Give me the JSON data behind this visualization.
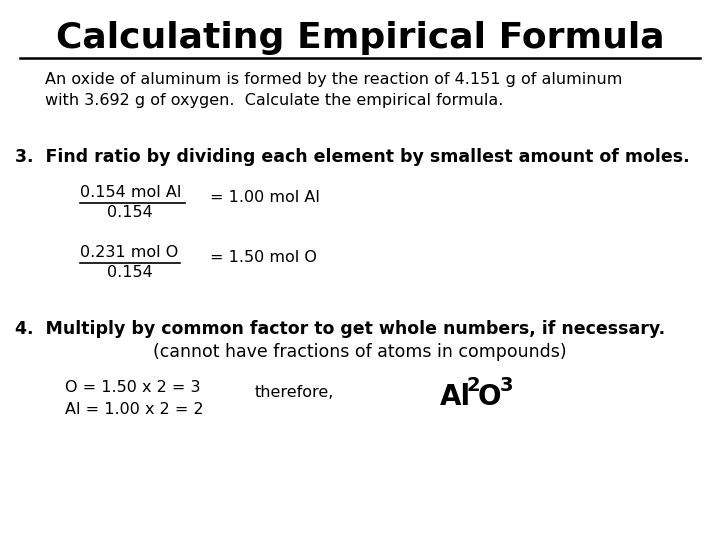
{
  "title": "Calculating Empirical Formula",
  "bg_color": "#ffffff",
  "text_color": "#000000",
  "title_fontsize": 26,
  "body_fontsize": 11.5,
  "bold_fontsize": 12.5,
  "intro": "An oxide of aluminum is formed by the reaction of 4.151 g of aluminum\nwith 3.692 g of oxygen.  Calculate the empirical formula.",
  "step3_header": "3.  Find ratio by dividing each element by smallest amount of moles.",
  "al_numerator": "0.154 mol Al",
  "al_denominator": "0.154",
  "al_result": "= 1.00 mol Al",
  "o_numerator": "0.231 mol O",
  "o_denominator": "0.154",
  "o_result": "= 1.50 mol O",
  "step4_header": "4.  Multiply by common factor to get whole numbers, if necessary.",
  "step4_sub": "(cannot have fractions of atoms in compounds)",
  "calc_lines": "O = 1.50 x 2 = 3\nAl = 1.00 x 2 = 2",
  "therefore": "therefore,",
  "formula_fontsize": 20
}
